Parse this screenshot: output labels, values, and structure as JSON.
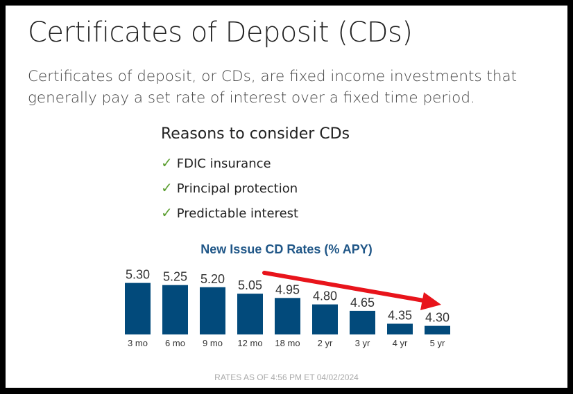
{
  "header": {
    "title": "Certificates of Deposit (CDs)",
    "intro": "Certificates of deposit, or CDs, are fixed income investments that generally pay a set rate of interest over a fixed time period."
  },
  "reasons": {
    "heading": "Reasons to consider CDs",
    "items": [
      "FDIC insurance",
      "Principal protection",
      "Predictable interest"
    ],
    "icon": "checkmark-icon"
  },
  "colors": {
    "bar": "#024a7b",
    "title": "#1f5687",
    "check": "#5a9e2f",
    "arrow": "#e8141b"
  },
  "chart_data": {
    "type": "bar",
    "title": "New Issue CD Rates (% APY)",
    "categories": [
      "3 mo",
      "6 mo",
      "9 mo",
      "12 mo",
      "18 mo",
      "2 yr",
      "3 yr",
      "4 yr",
      "5 yr"
    ],
    "values": [
      5.3,
      5.25,
      5.2,
      5.05,
      4.95,
      4.8,
      4.65,
      4.35,
      4.3
    ],
    "labels": [
      "5.30",
      "5.25",
      "5.20",
      "5.05",
      "4.95",
      "4.80",
      "4.65",
      "4.35",
      "4.30"
    ],
    "ylim": [
      4.1,
      5.3
    ],
    "annotation": "red downward-trend arrow",
    "note": "RATES AS OF 4:56 PM ET 04/02/2024"
  }
}
